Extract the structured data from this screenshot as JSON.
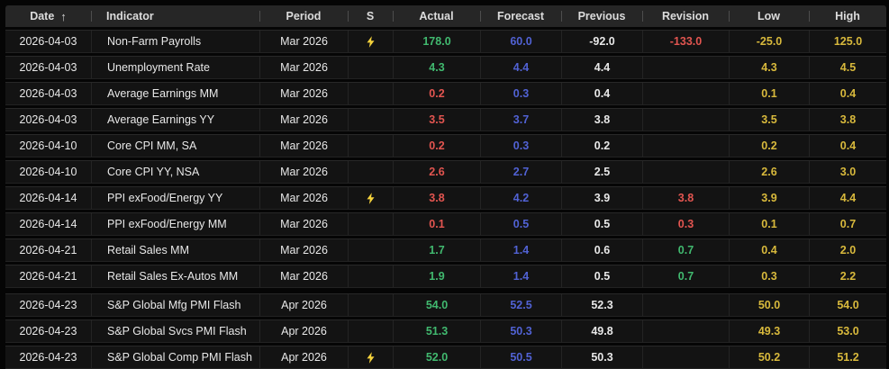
{
  "colors": {
    "green": "#41b96f",
    "red": "#e25550",
    "blue": "#5162d4",
    "yellow": "#d8b93c",
    "white": "#e8e8e8",
    "lightning": "#f6d33c",
    "header_bg": "#262626",
    "row_bg": "#131313"
  },
  "icons": {
    "sort_ascending": "↑",
    "surprise": "lightning-bolt"
  },
  "table": {
    "columns": [
      {
        "key": "date",
        "label": "Date",
        "align": "center",
        "sorted": "asc"
      },
      {
        "key": "indicator",
        "label": "Indicator",
        "align": "left"
      },
      {
        "key": "period",
        "label": "Period",
        "align": "center"
      },
      {
        "key": "s",
        "label": "S",
        "align": "center"
      },
      {
        "key": "actual",
        "label": "Actual",
        "align": "center"
      },
      {
        "key": "forecast",
        "label": "Forecast",
        "align": "center"
      },
      {
        "key": "previous",
        "label": "Previous",
        "align": "center"
      },
      {
        "key": "revision",
        "label": "Revision",
        "align": "center"
      },
      {
        "key": "low",
        "label": "Low",
        "align": "center"
      },
      {
        "key": "high",
        "label": "High",
        "align": "center"
      }
    ],
    "column_value_colors": {
      "date": "white",
      "indicator": "white",
      "period": "white",
      "forecast": "blue",
      "previous": "white",
      "low": "yellow",
      "high": "yellow"
    },
    "rows": [
      {
        "date": "2026-04-03",
        "indicator": "Non-Farm Payrolls",
        "period": "Mar 2026",
        "surprise": true,
        "actual": "178.0",
        "actual_color": "green",
        "forecast": "60.0",
        "previous": "-92.0",
        "revision": "-133.0",
        "revision_color": "red",
        "low": "-25.0",
        "high": "125.0",
        "group_start": false
      },
      {
        "date": "2026-04-03",
        "indicator": "Unemployment Rate",
        "period": "Mar 2026",
        "surprise": false,
        "actual": "4.3",
        "actual_color": "green",
        "forecast": "4.4",
        "previous": "4.4",
        "revision": "",
        "revision_color": "",
        "low": "4.3",
        "high": "4.5",
        "group_start": false
      },
      {
        "date": "2026-04-03",
        "indicator": "Average Earnings MM",
        "period": "Mar 2026",
        "surprise": false,
        "actual": "0.2",
        "actual_color": "red",
        "forecast": "0.3",
        "previous": "0.4",
        "revision": "",
        "revision_color": "",
        "low": "0.1",
        "high": "0.4",
        "group_start": false
      },
      {
        "date": "2026-04-03",
        "indicator": "Average Earnings YY",
        "period": "Mar 2026",
        "surprise": false,
        "actual": "3.5",
        "actual_color": "red",
        "forecast": "3.7",
        "previous": "3.8",
        "revision": "",
        "revision_color": "",
        "low": "3.5",
        "high": "3.8",
        "group_start": false
      },
      {
        "date": "2026-04-10",
        "indicator": "Core CPI MM, SA",
        "period": "Mar 2026",
        "surprise": false,
        "actual": "0.2",
        "actual_color": "red",
        "forecast": "0.3",
        "previous": "0.2",
        "revision": "",
        "revision_color": "",
        "low": "0.2",
        "high": "0.4",
        "group_start": false
      },
      {
        "date": "2026-04-10",
        "indicator": "Core CPI YY, NSA",
        "period": "Mar 2026",
        "surprise": false,
        "actual": "2.6",
        "actual_color": "red",
        "forecast": "2.7",
        "previous": "2.5",
        "revision": "",
        "revision_color": "",
        "low": "2.6",
        "high": "3.0",
        "group_start": false
      },
      {
        "date": "2026-04-14",
        "indicator": "PPI exFood/Energy YY",
        "period": "Mar 2026",
        "surprise": true,
        "actual": "3.8",
        "actual_color": "red",
        "forecast": "4.2",
        "previous": "3.9",
        "revision": "3.8",
        "revision_color": "red",
        "low": "3.9",
        "high": "4.4",
        "group_start": false
      },
      {
        "date": "2026-04-14",
        "indicator": "PPI exFood/Energy MM",
        "period": "Mar 2026",
        "surprise": false,
        "actual": "0.1",
        "actual_color": "red",
        "forecast": "0.5",
        "previous": "0.5",
        "revision": "0.3",
        "revision_color": "red",
        "low": "0.1",
        "high": "0.7",
        "group_start": false
      },
      {
        "date": "2026-04-21",
        "indicator": "Retail Sales MM",
        "period": "Mar 2026",
        "surprise": false,
        "actual": "1.7",
        "actual_color": "green",
        "forecast": "1.4",
        "previous": "0.6",
        "revision": "0.7",
        "revision_color": "green",
        "low": "0.4",
        "high": "2.0",
        "group_start": false
      },
      {
        "date": "2026-04-21",
        "indicator": "Retail Sales Ex-Autos MM",
        "period": "Mar 2026",
        "surprise": false,
        "actual": "1.9",
        "actual_color": "green",
        "forecast": "1.4",
        "previous": "0.5",
        "revision": "0.7",
        "revision_color": "green",
        "low": "0.3",
        "high": "2.2",
        "group_start": false
      },
      {
        "date": "2026-04-23",
        "indicator": "S&P Global Mfg PMI Flash",
        "period": "Apr 2026",
        "surprise": false,
        "actual": "54.0",
        "actual_color": "green",
        "forecast": "52.5",
        "previous": "52.3",
        "revision": "",
        "revision_color": "",
        "low": "50.0",
        "high": "54.0",
        "group_start": true
      },
      {
        "date": "2026-04-23",
        "indicator": "S&P Global Svcs PMI Flash",
        "period": "Apr 2026",
        "surprise": false,
        "actual": "51.3",
        "actual_color": "green",
        "forecast": "50.3",
        "previous": "49.8",
        "revision": "",
        "revision_color": "",
        "low": "49.3",
        "high": "53.0",
        "group_start": false
      },
      {
        "date": "2026-04-23",
        "indicator": "S&P Global Comp PMI Flash",
        "period": "Apr 2026",
        "surprise": true,
        "actual": "52.0",
        "actual_color": "green",
        "forecast": "50.5",
        "previous": "50.3",
        "revision": "",
        "revision_color": "",
        "low": "50.2",
        "high": "51.2",
        "group_start": false
      }
    ]
  }
}
